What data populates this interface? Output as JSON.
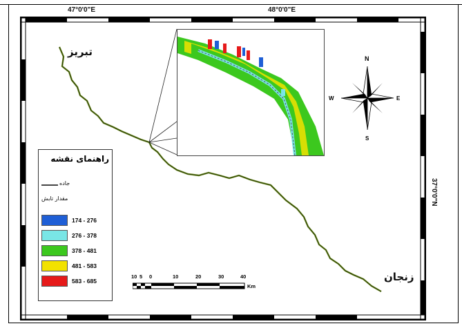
{
  "coordinates": {
    "top_left": "47°0'0\"E",
    "top_right": "48°0'0\"E",
    "right": "37°0'0\"N"
  },
  "cities": {
    "start": "تبریز",
    "end": "زنجان"
  },
  "north_arrow": {
    "n": "N",
    "s": "S",
    "e": "E",
    "w": "W"
  },
  "legend": {
    "title": "راهنمای نقشه",
    "road_label": "جاده",
    "range_label": "مقدار تابش",
    "items": [
      {
        "range": "174 - 276",
        "color": "#1f5fd6"
      },
      {
        "range": "276 - 378",
        "color": "#79e6e6"
      },
      {
        "range": "378 - 481",
        "color": "#3cc81e"
      },
      {
        "range": "481 - 583",
        "color": "#f2e200"
      },
      {
        "range": "583 - 685",
        "color": "#e61a1a"
      }
    ]
  },
  "scale_bar": {
    "ticks": [
      "10",
      "5",
      "0",
      "10",
      "20",
      "30",
      "40"
    ],
    "unit": "Km"
  }
}
